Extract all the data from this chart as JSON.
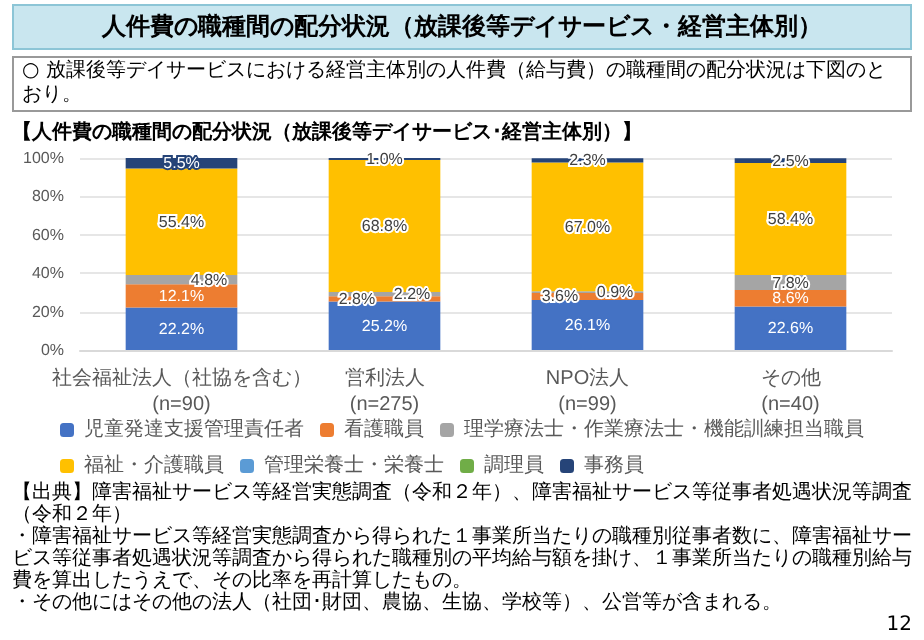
{
  "chart_data": {
    "type": "bar",
    "stacked": true,
    "title": "人件費の職種間の配分状況（放課後等デイサービス・経営主体別）",
    "subtitle": "○ 放課後等デイサービスにおける経営主体別の人件費（給与費）の職種間の配分状況は下図のとおり。",
    "legend_title": "【人件費の職種間の配分状況（放課後等デイサービス･経営主体別）】",
    "categories": [
      "社会福祉法人（社協を含む）\n(n=90)",
      "営利法人\n(n=275)",
      "NPO法人\n(n=99)",
      "その他\n(n=40)"
    ],
    "series": [
      {
        "name": "児童発達支援管理責任者",
        "color": "#4472c4",
        "values": [
          22.2,
          25.2,
          26.1,
          22.6
        ],
        "value_labels": [
          "22.2%",
          "25.2%",
          "26.1%",
          "22.6%"
        ]
      },
      {
        "name": "看護職員",
        "color": "#ed7d31",
        "values": [
          12.1,
          2.8,
          3.6,
          8.6
        ],
        "value_labels": [
          "12.1%",
          "2.8%",
          "3.6%",
          "8.6%"
        ]
      },
      {
        "name": "理学療法士・作業療法士・機能訓練担当職員",
        "color": "#a5a5a5",
        "values": [
          4.8,
          2.2,
          0.9,
          7.8
        ],
        "value_labels": [
          "4.8%",
          "2.2%",
          "0.9%",
          "7.8%"
        ]
      },
      {
        "name": "福祉・介護職員",
        "color": "#ffc000",
        "values": [
          55.4,
          68.8,
          67.0,
          58.4
        ],
        "value_labels": [
          "55.4%",
          "68.8%",
          "67.0%",
          "58.4%"
        ]
      },
      {
        "name": "管理栄養士・栄養士",
        "color": "#5b9bd5",
        "values": [
          null,
          null,
          null,
          null
        ]
      },
      {
        "name": "調理員",
        "color": "#70ad47",
        "values": [
          null,
          null,
          null,
          null
        ]
      },
      {
        "name": "事務員",
        "color": "#264478",
        "values": [
          5.5,
          1.0,
          2.3,
          2.5
        ],
        "value_labels": [
          "5.5%",
          "1.0%",
          "2.3%",
          "2.5%"
        ]
      }
    ],
    "ylim": [
      0,
      100
    ],
    "yticks": [
      {
        "value": 0,
        "label": "0%"
      },
      {
        "value": 20,
        "label": "20%"
      },
      {
        "value": 40,
        "label": "40%"
      },
      {
        "value": 60,
        "label": "60%"
      },
      {
        "value": 80,
        "label": "80%"
      },
      {
        "value": 100,
        "label": "100%"
      }
    ],
    "grid": "y",
    "legend": "bottom",
    "annotations": [
      "【出典】障害福祉サービス等経営実態調査（令和２年）、障害福祉サービス等従事者処遇状況等調査（令和２年）",
      "・障害福祉サービス等経営実態調査から得られた１事業所当たりの職種別従事者数に、障害福祉サービス等従事者処遇状況等調査から得られた職種別の平均給与額を掛け、１事業所当たりの職種別給与費を算出したうえで、その比率を再計算したもの。",
      "・その他にはその他の法人（社団･財団、農協、生協、学校等）、公営等が含まれる。",
      "12"
    ]
  }
}
